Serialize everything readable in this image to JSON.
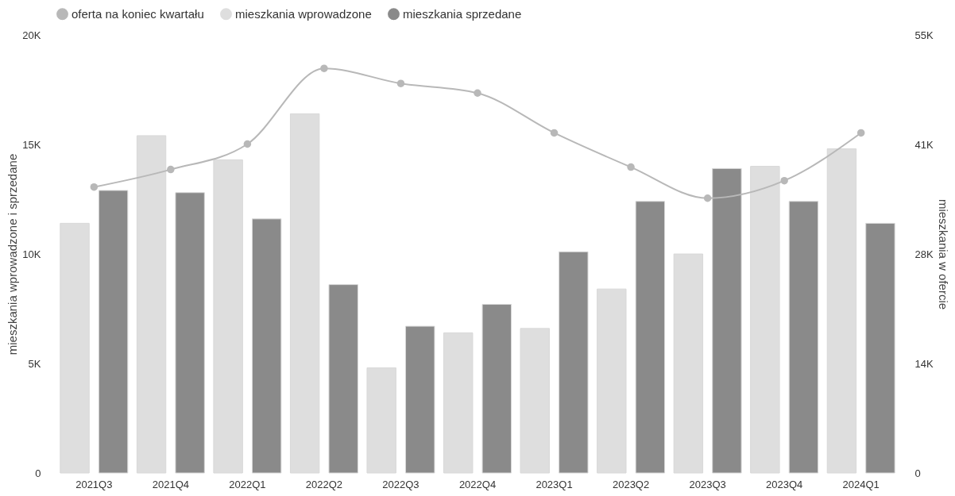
{
  "chart_data": {
    "type": "bar",
    "ylabel": "mieszkania wprowadzone i sprzedane",
    "y2label": "mieszkania w ofercie",
    "categories": [
      "2021Q3",
      "2021Q4",
      "2022Q1",
      "2022Q2",
      "2022Q3",
      "2022Q4",
      "2023Q1",
      "2023Q2",
      "2023Q3",
      "2023Q4",
      "2024Q1"
    ],
    "series": [
      {
        "name": "oferta na koniec kwartału",
        "type": "line",
        "axis": "y2",
        "color": "#b8b8b8",
        "marker": "circle",
        "values": [
          35900,
          38100,
          41300,
          50800,
          48900,
          47700,
          42700,
          38400,
          34500,
          36700,
          42700
        ]
      },
      {
        "name": "mieszkania wprowadzone",
        "color": "#dedede",
        "values": [
          11400,
          15400,
          14300,
          16400,
          4800,
          6400,
          6600,
          8400,
          10000,
          14000,
          14800
        ]
      },
      {
        "name": "mieszkania sprzedane",
        "color": "#8a8a8a",
        "values": [
          12900,
          12800,
          11600,
          8600,
          6700,
          7700,
          10100,
          12400,
          13900,
          12400,
          11400
        ]
      }
    ],
    "ylim": [
      0,
      20000
    ],
    "yticks": [
      {
        "value": 0,
        "label": "0"
      },
      {
        "value": 5000,
        "label": "5K"
      },
      {
        "value": 10000,
        "label": "10K"
      },
      {
        "value": 15000,
        "label": "15K"
      },
      {
        "value": 20000,
        "label": "20K"
      }
    ],
    "y2lim": [
      0,
      55000
    ],
    "y2ticks": [
      {
        "value": 0,
        "label": "0"
      },
      {
        "value": 13750,
        "label": "14K"
      },
      {
        "value": 27500,
        "label": "28K"
      },
      {
        "value": 41250,
        "label": "41K"
      },
      {
        "value": 55000,
        "label": "55K"
      }
    ],
    "legend": "top",
    "grid": false
  }
}
